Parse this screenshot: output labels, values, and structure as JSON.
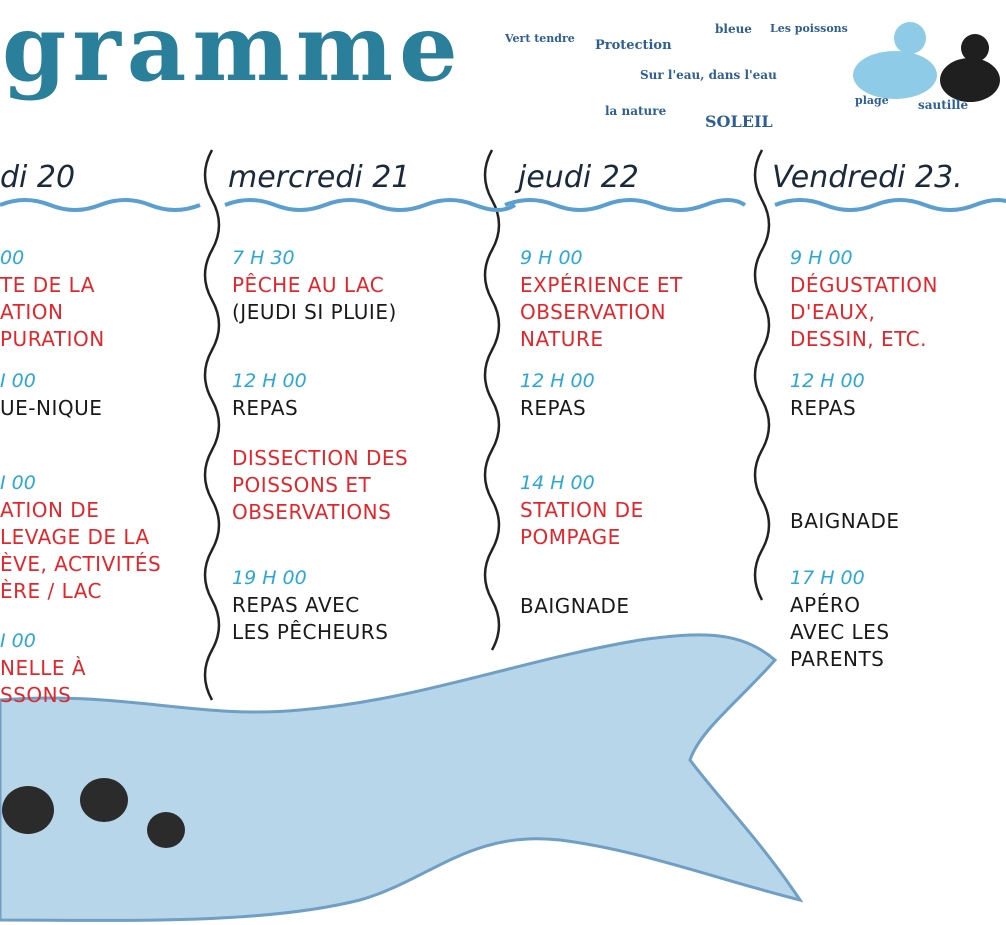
{
  "header": {
    "title": "gramme",
    "word_cloud": [
      "Vert tendre",
      "Protection",
      "bleue",
      "Les poissons",
      "Sur l'eau, dans l'eau",
      "la nature",
      "SOLEIL",
      "plage",
      "sautille"
    ]
  },
  "columns": [
    {
      "day": "di 20",
      "events": [
        {
          "time": "00",
          "title": [
            "TE DE LA",
            "ATION",
            "PURATION"
          ],
          "note": []
        },
        {
          "time": "I 00",
          "title": [],
          "note": [
            "UE-NIQUE"
          ]
        },
        {
          "time": "I 00",
          "title": [
            "ATION DE",
            "LEVAGE DE LA",
            "ÈVE, ACTIVITÉS",
            "ÈRE / LAC"
          ],
          "note": []
        },
        {
          "time": "I 00",
          "title": [
            "NELLE À",
            "SSONS"
          ],
          "note": []
        }
      ]
    },
    {
      "day": "mercredi 21",
      "events": [
        {
          "time": "7 H 30",
          "title": [
            "PÊCHE AU LAC"
          ],
          "note": [
            "(JEUDI SI PLUIE)"
          ]
        },
        {
          "time": "12 H 00",
          "title": [],
          "note": [
            "REPAS"
          ]
        },
        {
          "time": null,
          "title": [
            "DISSECTION DES",
            "POISSONS ET",
            "OBSERVATIONS"
          ],
          "note": []
        },
        {
          "time": "19 H 00",
          "title": [],
          "note": [
            "REPAS AVEC",
            "LES PÊCHEURS"
          ]
        }
      ]
    },
    {
      "day": "jeudi 22",
      "events": [
        {
          "time": "9 H 00",
          "title": [
            "EXPÉRIENCE ET",
            "OBSERVATION",
            "NATURE"
          ],
          "note": []
        },
        {
          "time": "12 H 00",
          "title": [],
          "note": [
            "REPAS"
          ]
        },
        {
          "time": "14 H 00",
          "title": [
            "STATION DE",
            "POMPAGE"
          ],
          "note": []
        },
        {
          "time": null,
          "title": [],
          "note": [
            "BAIGNADE"
          ]
        }
      ]
    },
    {
      "day": "Vendredi 23.",
      "events": [
        {
          "time": "9 H 00",
          "title": [
            "DÉGUSTATION",
            "D'EAUX,",
            "DESSIN, ETC."
          ],
          "note": []
        },
        {
          "time": "12 H 00",
          "title": [],
          "note": [
            "REPAS"
          ]
        },
        {
          "time": null,
          "title": [],
          "note": [
            "BAIGNADE"
          ]
        },
        {
          "time": "17 H 00",
          "title": [],
          "note": [
            "APÉRO",
            "AVEC LES",
            "PARENTS"
          ]
        }
      ]
    }
  ]
}
